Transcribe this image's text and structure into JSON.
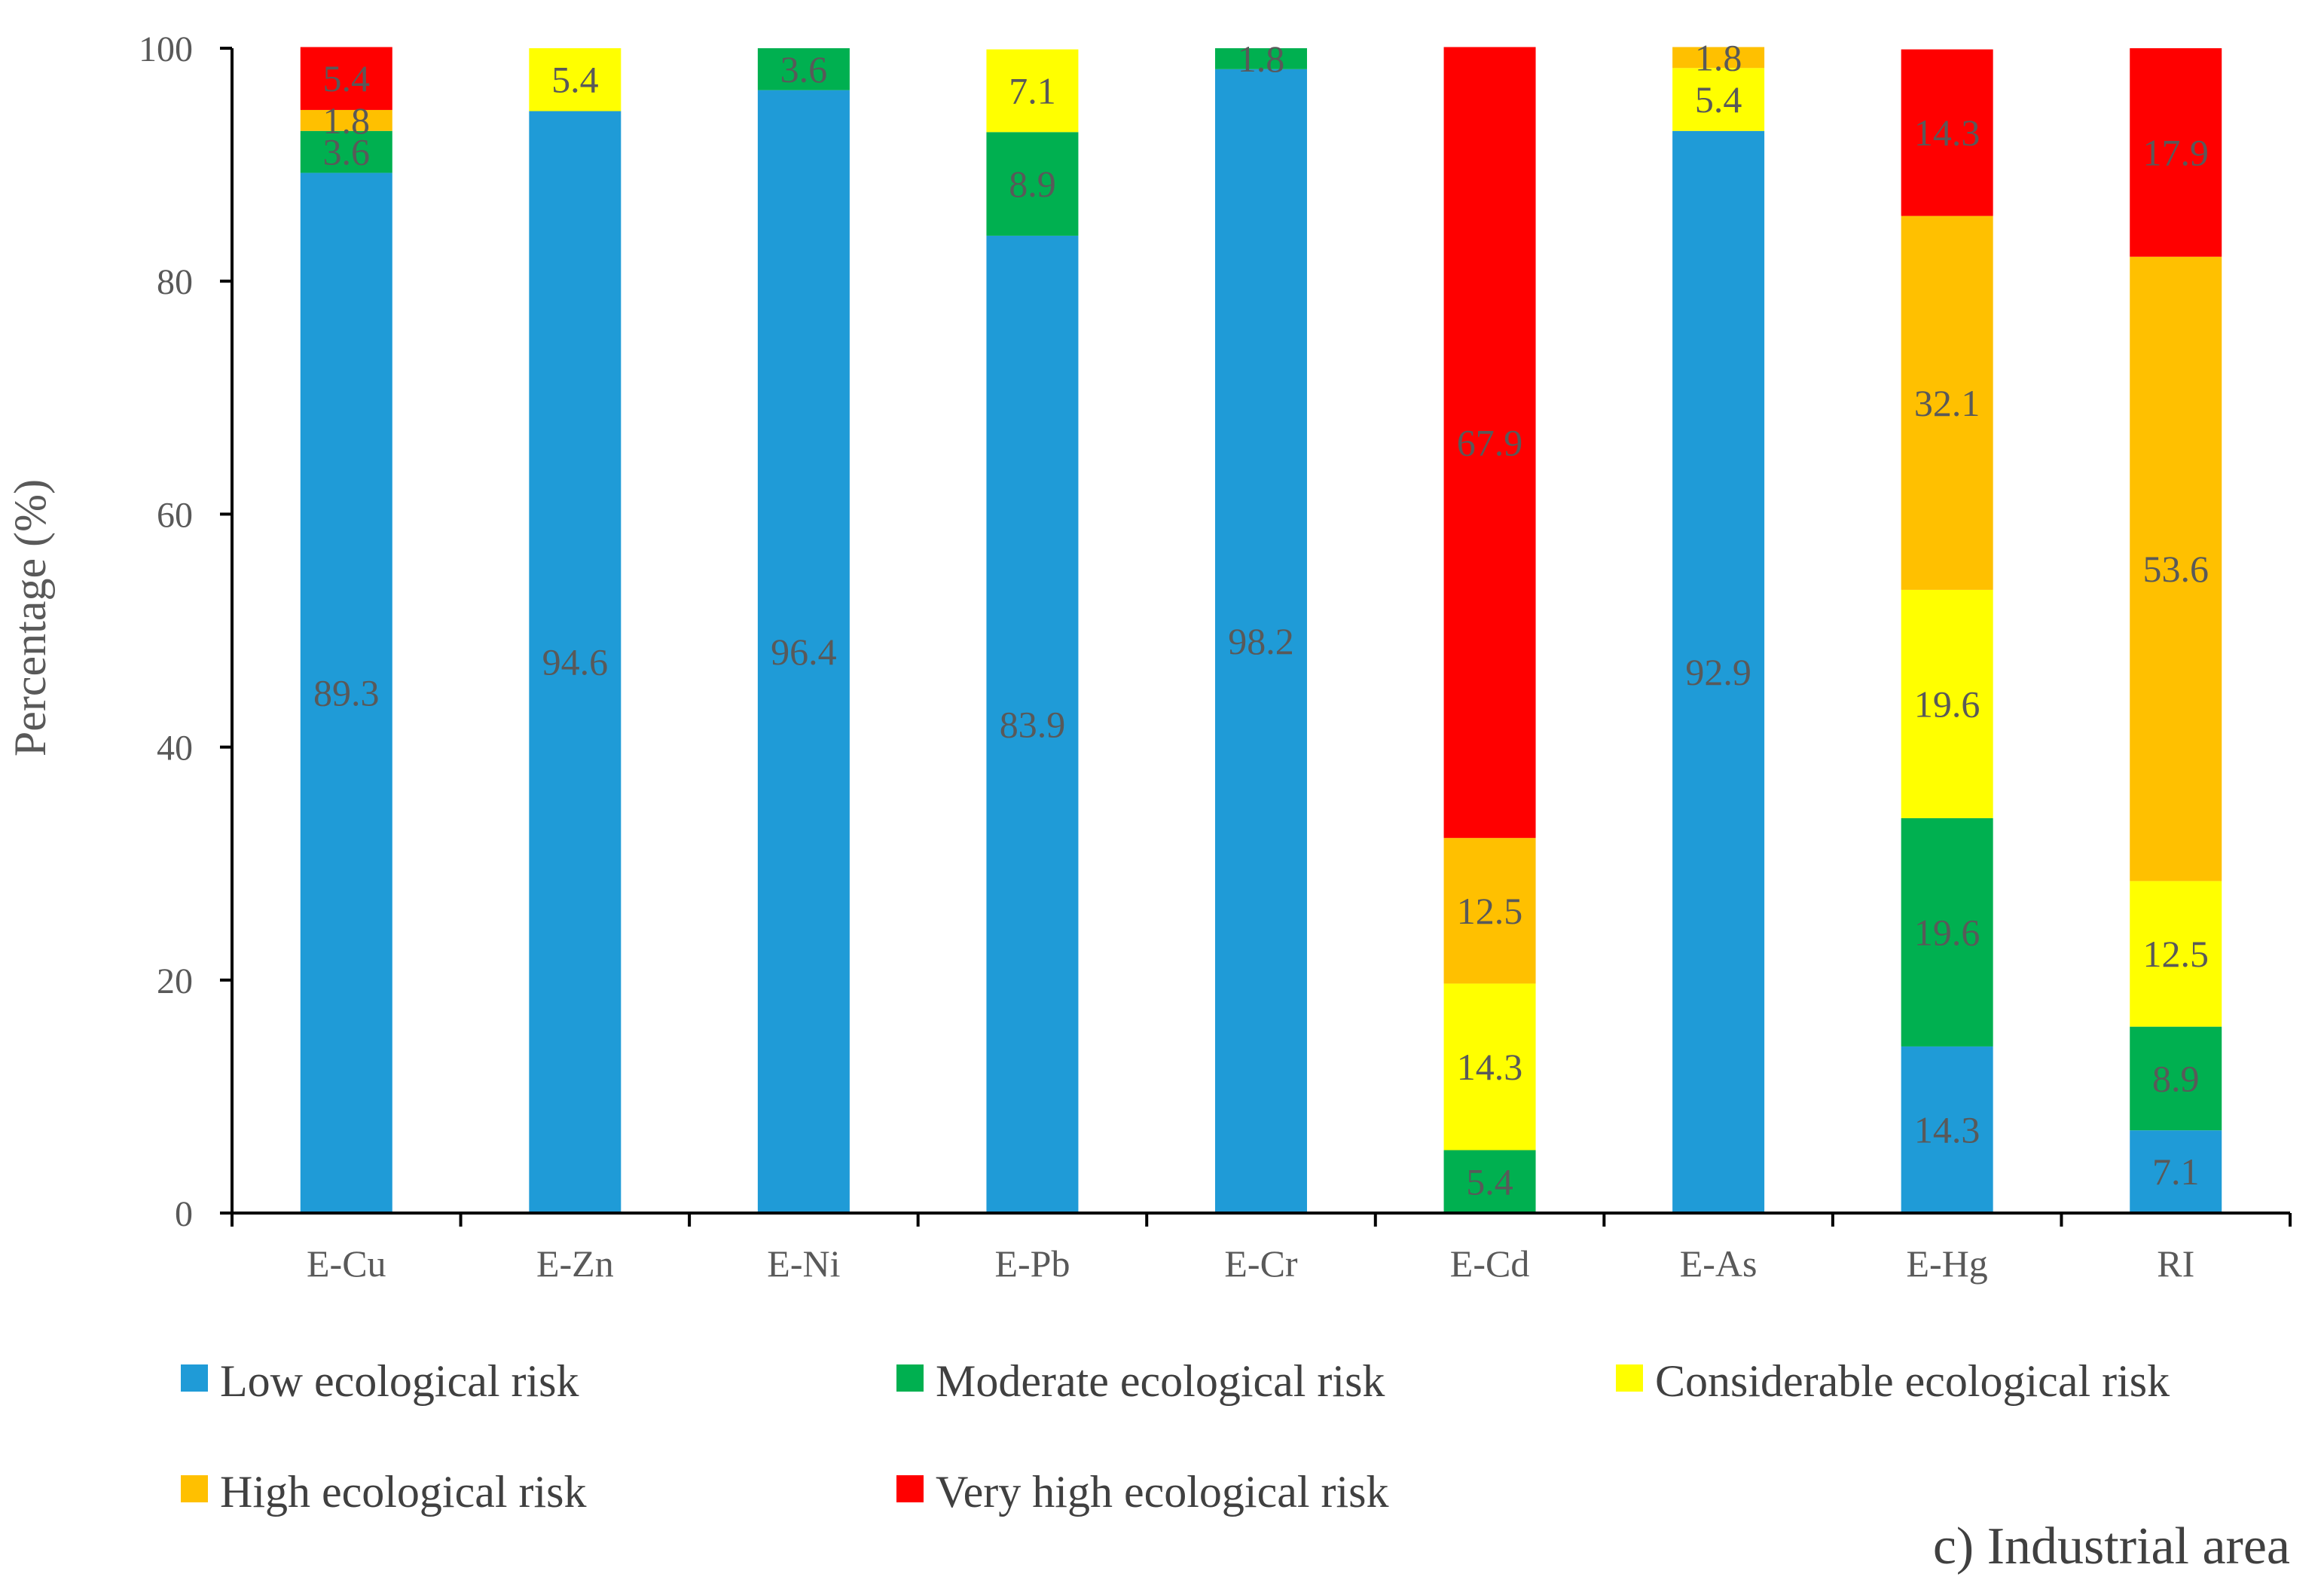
{
  "chart_data": {
    "type": "bar",
    "stacked": true,
    "caption": "c) Industrial area",
    "xlabel": "",
    "ylabel": "Percentage (%)",
    "ylim": [
      0,
      100
    ],
    "yticks": [
      0,
      20,
      40,
      60,
      80,
      100
    ],
    "grid": false,
    "legend_position": "bottom",
    "categories": [
      "E-Cu",
      "E-Zn",
      "E-Ni",
      "E-Pb",
      "E-Cr",
      "E-Cd",
      "E-As",
      "E-Hg",
      "RI"
    ],
    "series": [
      {
        "name": "Low ecological risk",
        "color": "#1F9BD7",
        "values": [
          89.3,
          94.6,
          96.4,
          83.9,
          98.2,
          0,
          92.9,
          14.3,
          7.1
        ]
      },
      {
        "name": "Moderate ecological risk",
        "color": "#00B050",
        "values": [
          3.6,
          0,
          3.6,
          8.9,
          1.8,
          5.4,
          0,
          19.6,
          8.9
        ]
      },
      {
        "name": "Considerable ecological risk",
        "color": "#FFFF00",
        "values": [
          0,
          5.4,
          0,
          7.1,
          0,
          14.3,
          5.4,
          19.6,
          12.5
        ]
      },
      {
        "name": "High ecological risk",
        "color": "#FFC000",
        "values": [
          1.8,
          0,
          0,
          0,
          0,
          12.5,
          1.8,
          32.1,
          53.6
        ]
      },
      {
        "name": "Very high ecological risk",
        "color": "#FF0000",
        "values": [
          5.4,
          0,
          0,
          0,
          0,
          67.9,
          0,
          14.3,
          17.9
        ]
      }
    ]
  }
}
